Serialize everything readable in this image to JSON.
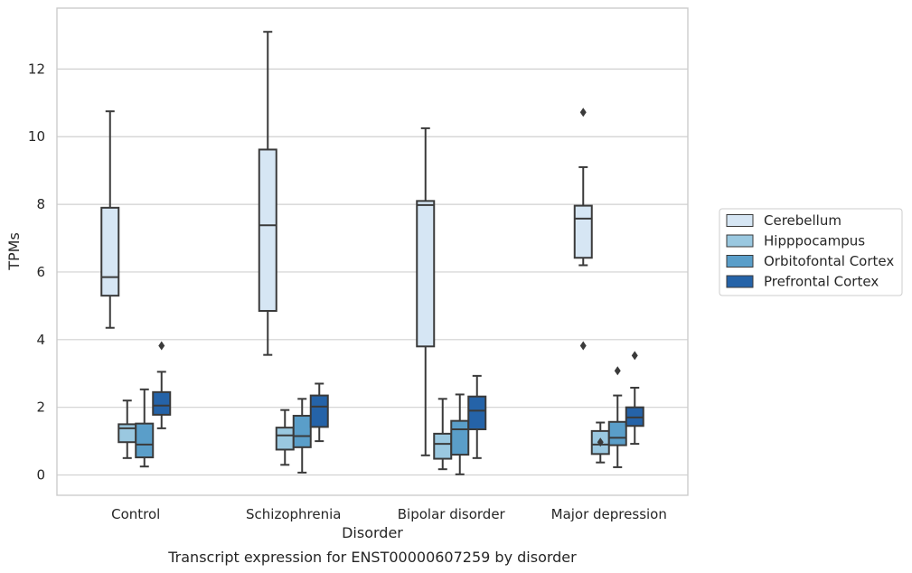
{
  "chart_data": {
    "type": "box",
    "caption": "Transcript expression for ENST00000607259 by disorder",
    "xlabel": "Disorder",
    "ylabel": "TPMs",
    "ylim": [
      -0.6,
      13.8
    ],
    "yticks": [
      0,
      2,
      4,
      6,
      8,
      10,
      12
    ],
    "grid": "horizontal",
    "legend_position": "right",
    "categories": [
      "Control",
      "Schizophrenia",
      "Bipolar disorder",
      "Major depression"
    ],
    "series": [
      {
        "name": "Cerebellum",
        "color": "#d6e6f4",
        "boxes": [
          {
            "whislo": 4.35,
            "q1": 5.3,
            "med": 5.85,
            "q3": 7.9,
            "whishi": 10.75,
            "fliers": []
          },
          {
            "whislo": 3.55,
            "q1": 4.85,
            "med": 7.38,
            "q3": 9.62,
            "whishi": 13.1,
            "fliers": []
          },
          {
            "whislo": 0.58,
            "q1": 3.8,
            "med": 7.98,
            "q3": 8.1,
            "whishi": 10.25,
            "fliers": []
          },
          {
            "whislo": 6.2,
            "q1": 6.42,
            "med": 7.58,
            "q3": 7.96,
            "whishi": 9.1,
            "fliers": [
              10.72,
              3.82
            ]
          }
        ]
      },
      {
        "name": "Hipppocampus",
        "color": "#9ac8e0",
        "boxes": [
          {
            "whislo": 0.5,
            "q1": 0.97,
            "med": 1.38,
            "q3": 1.5,
            "whishi": 2.2,
            "fliers": []
          },
          {
            "whislo": 0.3,
            "q1": 0.75,
            "med": 1.17,
            "q3": 1.4,
            "whishi": 1.92,
            "fliers": []
          },
          {
            "whislo": 0.17,
            "q1": 0.48,
            "med": 0.92,
            "q3": 1.22,
            "whishi": 2.25,
            "fliers": []
          },
          {
            "whislo": 0.37,
            "q1": 0.62,
            "med": 0.9,
            "q3": 1.3,
            "whishi": 1.55,
            "fliers": [
              0.97
            ]
          }
        ]
      },
      {
        "name": "Orbitofontal Cortex",
        "color": "#5a9ec9",
        "boxes": [
          {
            "whislo": 0.25,
            "q1": 0.52,
            "med": 0.9,
            "q3": 1.52,
            "whishi": 2.53,
            "fliers": []
          },
          {
            "whislo": 0.07,
            "q1": 0.82,
            "med": 1.15,
            "q3": 1.75,
            "whishi": 2.25,
            "fliers": []
          },
          {
            "whislo": 0.02,
            "q1": 0.6,
            "med": 1.35,
            "q3": 1.6,
            "whishi": 2.38,
            "fliers": []
          },
          {
            "whislo": 0.23,
            "q1": 0.88,
            "med": 1.1,
            "q3": 1.57,
            "whishi": 2.35,
            "fliers": [
              3.08
            ]
          }
        ]
      },
      {
        "name": "Prefrontal Cortex",
        "color": "#2563a8",
        "boxes": [
          {
            "whislo": 1.38,
            "q1": 1.78,
            "med": 2.05,
            "q3": 2.45,
            "whishi": 3.05,
            "fliers": [
              3.82
            ]
          },
          {
            "whislo": 1.0,
            "q1": 1.42,
            "med": 2.02,
            "q3": 2.35,
            "whishi": 2.7,
            "fliers": []
          },
          {
            "whislo": 0.5,
            "q1": 1.35,
            "med": 1.9,
            "q3": 2.32,
            "whishi": 2.93,
            "fliers": []
          },
          {
            "whislo": 0.92,
            "q1": 1.45,
            "med": 1.7,
            "q3": 2.0,
            "whishi": 2.58,
            "fliers": [
              3.53
            ]
          }
        ]
      }
    ]
  }
}
